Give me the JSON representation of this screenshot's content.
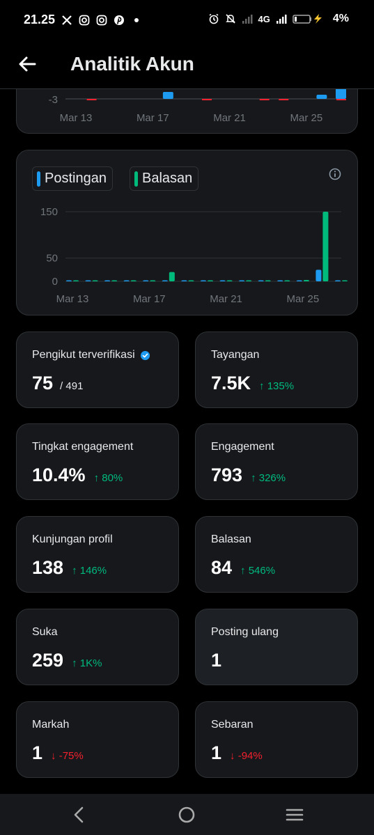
{
  "status_bar": {
    "time": "21.25",
    "network": "4G",
    "battery": "4%",
    "icons": [
      "x-icon",
      "instagram-icon",
      "instagram-icon",
      "pinterest-icon",
      "dot-icon",
      "alarm-icon",
      "mute-icon",
      "signal-icon",
      "battery-icon"
    ]
  },
  "header": {
    "title": "Analitik Akun"
  },
  "colors": {
    "posts": "#1d9bf0",
    "replies": "#00ba7c",
    "negative": "#f4212e",
    "card_bg": "#16181c",
    "border": "#2f3336"
  },
  "chart_data": [
    {
      "type": "bar",
      "y_tick_labels": [
        "-3"
      ],
      "x_tick_labels": [
        "Mar 13",
        "Mar 17",
        "Mar 21",
        "Mar 25"
      ],
      "note_visible": "partially scrolled chart, only bottom part visible",
      "series": [
        {
          "values_by_day": [
            0,
            0,
            0,
            0,
            0,
            2,
            0,
            0,
            0,
            0,
            0,
            0,
            0,
            1,
            4
          ]
        },
        {
          "values_by_day": [
            0,
            -0.2,
            0,
            0,
            0,
            0,
            0,
            -0.2,
            0,
            0,
            -0.2,
            -0.2,
            0,
            0,
            -0.2
          ]
        }
      ]
    },
    {
      "type": "bar",
      "legend": [
        "Postingan",
        "Balasan"
      ],
      "y_tick_labels": [
        "150",
        "50",
        "0"
      ],
      "ylim": [
        0,
        150
      ],
      "x_tick_labels": [
        "Mar 13",
        "Mar 17",
        "Mar 21",
        "Mar 25"
      ],
      "days": [
        "Mar 13",
        "Mar 14",
        "Mar 15",
        "Mar 16",
        "Mar 17",
        "Mar 18",
        "Mar 19",
        "Mar 20",
        "Mar 21",
        "Mar 22",
        "Mar 23",
        "Mar 24",
        "Mar 25",
        "Mar 26",
        "Mar 27"
      ],
      "series": [
        {
          "name": "Postingan",
          "values": [
            1,
            0,
            0,
            0,
            1,
            2,
            0,
            0,
            1,
            0,
            0,
            0,
            1,
            25,
            0
          ]
        },
        {
          "name": "Balasan",
          "values": [
            0,
            1,
            0,
            0,
            0,
            20,
            0,
            0,
            0,
            0,
            0,
            0,
            3,
            150,
            0
          ]
        }
      ]
    }
  ],
  "stats": [
    {
      "label": "Pengikut terverifikasi",
      "value": "75",
      "sub": "/ 491",
      "delta": "",
      "verified": true
    },
    {
      "label": "Tayangan",
      "value": "7.5K",
      "delta": "↑ 135%",
      "dir": "up"
    },
    {
      "label": "Tingkat engagement",
      "value": "10.4%",
      "delta": "↑ 80%",
      "dir": "up"
    },
    {
      "label": "Engagement",
      "value": "793",
      "delta": "↑ 326%",
      "dir": "up"
    },
    {
      "label": "Kunjungan profil",
      "value": "138",
      "delta": "↑ 146%",
      "dir": "up"
    },
    {
      "label": "Balasan",
      "value": "84",
      "delta": "↑ 546%",
      "dir": "up"
    },
    {
      "label": "Suka",
      "value": "259",
      "delta": "↑ 1K%",
      "dir": "up"
    },
    {
      "label": "Posting ulang",
      "value": "1",
      "delta": "",
      "dir": ""
    },
    {
      "label": "Markah",
      "value": "1",
      "delta": "↓ -75%",
      "dir": "down"
    },
    {
      "label": "Sebaran",
      "value": "1",
      "delta": "↓ -94%",
      "dir": "down"
    }
  ],
  "nav": {
    "icons": [
      "back-nav-icon",
      "home-nav-icon",
      "recents-nav-icon"
    ]
  }
}
